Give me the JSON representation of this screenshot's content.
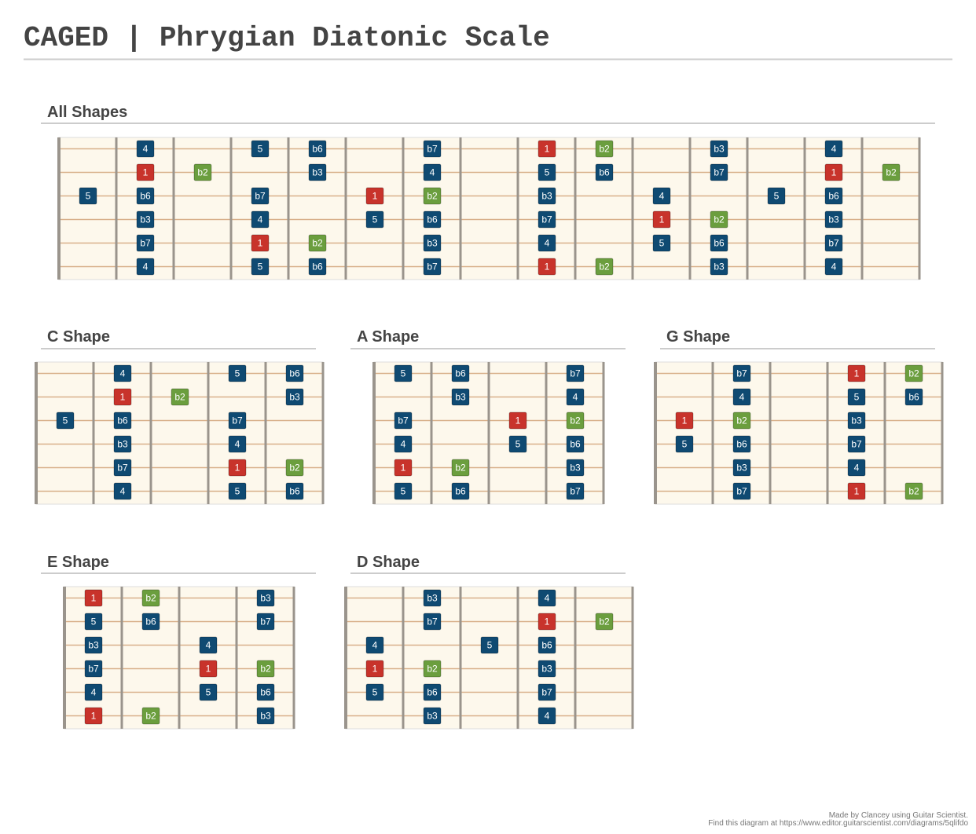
{
  "title": "CAGED | Phrygian Diatonic Scale",
  "label_colors": {
    "1": "#c8332b",
    "b2": "#6b9e3e"
  },
  "default_color": "#0f4a72",
  "sections": [
    {
      "name": "All Shapes",
      "strings": [
        [
          null,
          "4",
          null,
          "5",
          "b6",
          null,
          "b7",
          null,
          "1",
          "b2",
          null,
          "b3",
          null,
          "4",
          null
        ],
        [
          null,
          "1",
          "b2",
          null,
          "b3",
          null,
          "4",
          null,
          "5",
          "b6",
          null,
          "b7",
          null,
          "1",
          "b2"
        ],
        [
          "5",
          "b6",
          null,
          "b7",
          null,
          "1",
          "b2",
          null,
          "b3",
          null,
          "4",
          null,
          "5",
          "b6",
          null
        ],
        [
          null,
          "b3",
          null,
          "4",
          null,
          "5",
          "b6",
          null,
          "b7",
          null,
          "1",
          "b2",
          null,
          "b3",
          null
        ],
        [
          null,
          "b7",
          null,
          "1",
          "b2",
          null,
          "b3",
          null,
          "4",
          null,
          "5",
          "b6",
          null,
          "b7",
          null
        ],
        [
          null,
          "4",
          null,
          "5",
          "b6",
          null,
          "b7",
          null,
          "1",
          "b2",
          null,
          "b3",
          null,
          "4",
          null
        ]
      ]
    },
    {
      "name": "C Shape",
      "strings": [
        [
          null,
          "4",
          null,
          "5",
          "b6"
        ],
        [
          null,
          "1",
          "b2",
          null,
          "b3"
        ],
        [
          "5",
          "b6",
          null,
          "b7",
          null
        ],
        [
          null,
          "b3",
          null,
          "4",
          null
        ],
        [
          null,
          "b7",
          null,
          "1",
          "b2"
        ],
        [
          null,
          "4",
          null,
          "5",
          "b6"
        ]
      ]
    },
    {
      "name": "A Shape",
      "strings": [
        [
          "5",
          "b6",
          null,
          "b7"
        ],
        [
          null,
          "b3",
          null,
          "4"
        ],
        [
          "b7",
          null,
          "1",
          "b2"
        ],
        [
          "4",
          null,
          "5",
          "b6"
        ],
        [
          "1",
          "b2",
          null,
          "b3"
        ],
        [
          "5",
          "b6",
          null,
          "b7"
        ]
      ]
    },
    {
      "name": "G Shape",
      "strings": [
        [
          null,
          "b7",
          null,
          "1",
          "b2"
        ],
        [
          null,
          "4",
          null,
          "5",
          "b6"
        ],
        [
          "1",
          "b2",
          null,
          "b3",
          null
        ],
        [
          "5",
          "b6",
          null,
          "b7",
          null
        ],
        [
          null,
          "b3",
          null,
          "4",
          null
        ],
        [
          null,
          "b7",
          null,
          "1",
          "b2"
        ]
      ]
    },
    {
      "name": "E Shape",
      "strings": [
        [
          "1",
          "b2",
          null,
          "b3"
        ],
        [
          "5",
          "b6",
          null,
          "b7"
        ],
        [
          "b3",
          null,
          "4",
          null
        ],
        [
          "b7",
          null,
          "1",
          "b2"
        ],
        [
          "4",
          null,
          "5",
          "b6"
        ],
        [
          "1",
          "b2",
          null,
          "b3"
        ]
      ]
    },
    {
      "name": "D Shape",
      "strings": [
        [
          null,
          "b3",
          null,
          "4",
          null
        ],
        [
          null,
          "b7",
          null,
          "1",
          "b2"
        ],
        [
          "4",
          null,
          "5",
          "b6",
          null
        ],
        [
          "1",
          "b2",
          null,
          "b3",
          null
        ],
        [
          "5",
          "b6",
          null,
          "b7",
          null
        ],
        [
          null,
          "b3",
          null,
          "4",
          null
        ]
      ]
    }
  ],
  "footer": [
    "Made by Clancey using Guitar Scientist.",
    "Find this diagram at https://www.editor.guitarscientist.com/diagrams/5qlifdo"
  ]
}
